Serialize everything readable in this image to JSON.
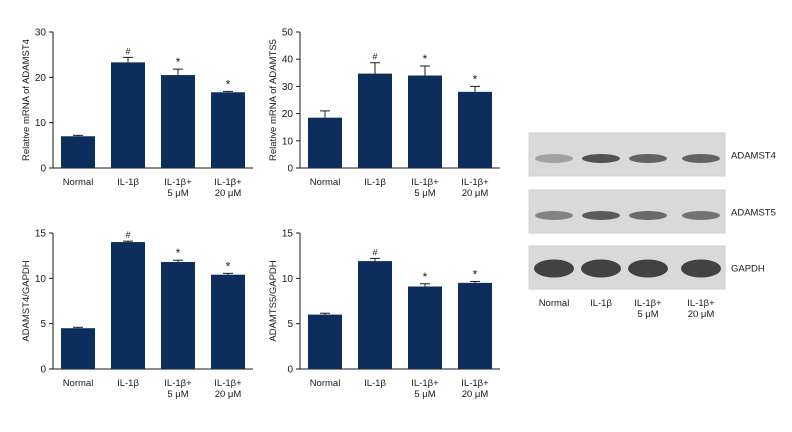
{
  "colors": {
    "bar": "#0d2d5c",
    "axis": "#1a1a1a",
    "blot_bg": "#d9d9d9",
    "band": "#3a3a3a"
  },
  "chart_data": [
    {
      "type": "bar",
      "ylabel": "Relative mRNA of ADAMST4",
      "ylim": [
        0,
        30
      ],
      "yticks": [
        0,
        10,
        20,
        30
      ],
      "categories": [
        [
          "Normal"
        ],
        [
          "IL-1β"
        ],
        [
          "IL-1β+",
          "5 μM"
        ],
        [
          "IL-1β+",
          "20 μM"
        ]
      ],
      "values": [
        7.0,
        23.3,
        20.5,
        16.7
      ],
      "errors": [
        0.2,
        1.1,
        1.3,
        0.2
      ],
      "annotations": [
        "",
        "#",
        "*",
        "*"
      ]
    },
    {
      "type": "bar",
      "ylabel": "Relative mRNA of ADAMTS5",
      "ylim": [
        0,
        50
      ],
      "yticks": [
        0,
        10,
        20,
        30,
        40,
        50
      ],
      "categories": [
        [
          "Normal"
        ],
        [
          "IL-1β"
        ],
        [
          "IL-1β+",
          "5 μM"
        ],
        [
          "IL-1β+",
          "20 μM"
        ]
      ],
      "values": [
        18.5,
        34.7,
        34.0,
        28.0
      ],
      "errors": [
        2.5,
        4.0,
        3.5,
        2.0
      ],
      "annotations": [
        "",
        "#",
        "*",
        "*"
      ]
    },
    {
      "type": "bar",
      "ylabel": "ADAMST4/GAPDH",
      "ylim": [
        0,
        15
      ],
      "yticks": [
        0,
        5,
        10,
        15
      ],
      "categories": [
        [
          "Normal"
        ],
        [
          "IL-1β"
        ],
        [
          "IL-1β+",
          "5 μM"
        ],
        [
          "IL-1β+",
          "20 μM"
        ]
      ],
      "values": [
        4.5,
        14.0,
        11.8,
        10.4
      ],
      "errors": [
        0.1,
        0.1,
        0.2,
        0.15
      ],
      "annotations": [
        "",
        "#",
        "*",
        "*"
      ]
    },
    {
      "type": "bar",
      "ylabel": "ADAMTS5/GAPDH",
      "ylim": [
        0,
        15
      ],
      "yticks": [
        0,
        5,
        10,
        15
      ],
      "categories": [
        [
          "Normal"
        ],
        [
          "IL-1β"
        ],
        [
          "IL-1β+",
          "5 μM"
        ],
        [
          "IL-1β+",
          "20 μM"
        ]
      ],
      "values": [
        6.0,
        11.9,
        9.1,
        9.5
      ],
      "errors": [
        0.15,
        0.3,
        0.3,
        0.15
      ],
      "annotations": [
        "",
        "#",
        "*",
        "*"
      ]
    }
  ],
  "western_blot": {
    "rows": [
      "ADAMST4",
      "ADAMST5",
      "GAPDH"
    ],
    "lanes": [
      [
        "Normal"
      ],
      [
        "IL-1β"
      ],
      [
        "IL-1β+",
        "5 μM"
      ],
      [
        "IL-1β+",
        "20 μM"
      ]
    ],
    "band_intensity": [
      [
        0.35,
        0.85,
        0.75,
        0.75
      ],
      [
        0.55,
        0.8,
        0.7,
        0.65
      ],
      [
        0.95,
        0.95,
        0.95,
        0.95
      ]
    ]
  }
}
